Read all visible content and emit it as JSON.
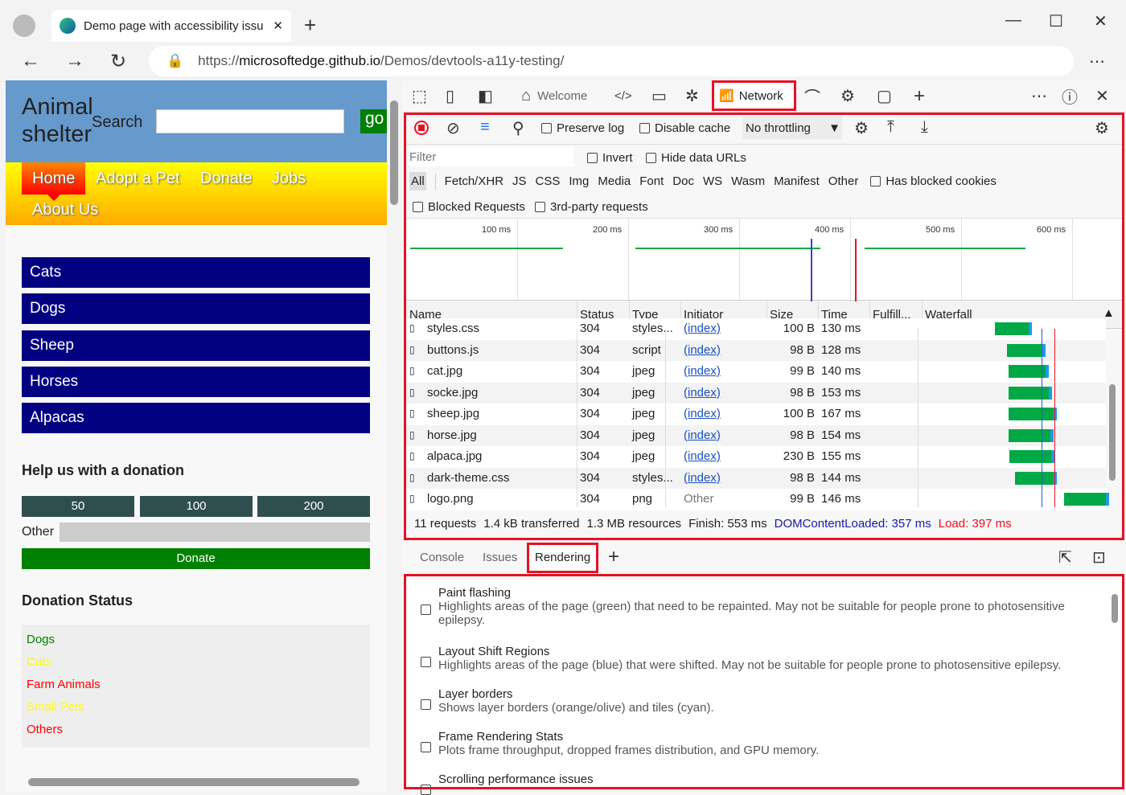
{
  "browser": {
    "tab_title": "Demo page with accessibility issu",
    "url_prefix": "https://",
    "url_host": "microsoftedge.github.io",
    "url_path": "/Demos/devtools-a11y-testing/"
  },
  "page": {
    "logo_line1": "Animal",
    "logo_line2": "shelter",
    "search_label": "Search",
    "search_value": "",
    "go_label": "go",
    "nav": [
      "Home",
      "Adopt a Pet",
      "Donate",
      "Jobs",
      "About Us"
    ],
    "categories": [
      "Cats",
      "Dogs",
      "Sheep",
      "Horses",
      "Alpacas"
    ],
    "donation_heading": "Help us with a donation",
    "amounts": [
      "50",
      "100",
      "200"
    ],
    "other_label": "Other",
    "donate_label": "Donate",
    "status_heading": "Donation Status",
    "status": [
      {
        "label": "Dogs",
        "color": "#008000"
      },
      {
        "label": "Cats",
        "color": "#ffff00"
      },
      {
        "label": "Farm Animals",
        "color": "#ff0000"
      },
      {
        "label": "Small Pets",
        "color": "#ffff00"
      },
      {
        "label": "Others",
        "color": "#ff0000"
      }
    ]
  },
  "devtools": {
    "tabs": {
      "welcome": "Welcome",
      "network": "Network"
    },
    "toolbar": {
      "preserve_log": "Preserve log",
      "disable_cache": "Disable cache",
      "throttling": "No throttling"
    },
    "filter": {
      "placeholder": "Filter",
      "invert": "Invert",
      "hide_data_urls": "Hide data URLs",
      "has_blocked_cookies": "Has blocked cookies",
      "blocked_requests": "Blocked Requests",
      "third_party": "3rd-party requests"
    },
    "types": [
      "All",
      "Fetch/XHR",
      "JS",
      "CSS",
      "Img",
      "Media",
      "Font",
      "Doc",
      "WS",
      "Wasm",
      "Manifest",
      "Other"
    ],
    "overview_ticks": [
      "100 ms",
      "200 ms",
      "300 ms",
      "400 ms",
      "500 ms",
      "600 ms"
    ],
    "columns": [
      "Name",
      "Status",
      "Type",
      "Initiator",
      "Size",
      "Time",
      "Fulfill...",
      "Waterfall"
    ],
    "rows": [
      {
        "name": "styles.css",
        "status": "304",
        "type": "styles...",
        "initiator": "(index)",
        "size": "100 B",
        "time": "130 ms"
      },
      {
        "name": "buttons.js",
        "status": "304",
        "type": "script",
        "initiator": "(index)",
        "size": "98 B",
        "time": "128 ms"
      },
      {
        "name": "cat.jpg",
        "status": "304",
        "type": "jpeg",
        "initiator": "(index)",
        "size": "99 B",
        "time": "140 ms"
      },
      {
        "name": "socke.jpg",
        "status": "304",
        "type": "jpeg",
        "initiator": "(index)",
        "size": "98 B",
        "time": "153 ms"
      },
      {
        "name": "sheep.jpg",
        "status": "304",
        "type": "jpeg",
        "initiator": "(index)",
        "size": "100 B",
        "time": "167 ms"
      },
      {
        "name": "horse.jpg",
        "status": "304",
        "type": "jpeg",
        "initiator": "(index)",
        "size": "98 B",
        "time": "154 ms"
      },
      {
        "name": "alpaca.jpg",
        "status": "304",
        "type": "jpeg",
        "initiator": "(index)",
        "size": "230 B",
        "time": "155 ms"
      },
      {
        "name": "dark-theme.css",
        "status": "304",
        "type": "styles...",
        "initiator": "(index)",
        "size": "98 B",
        "time": "144 ms"
      },
      {
        "name": "logo.png",
        "status": "304",
        "type": "png",
        "initiator": "Other",
        "size": "99 B",
        "time": "146 ms"
      }
    ],
    "summary": {
      "requests": "11 requests",
      "transferred": "1.4 kB transferred",
      "resources": "1.3 MB resources",
      "finish": "Finish: 553 ms",
      "dcl": "DOMContentLoaded: 357 ms",
      "load": "Load: 397 ms",
      "dcl_color": "#1a1aa6",
      "load_color": "#e81123"
    },
    "drawer_tabs": [
      "Console",
      "Issues",
      "Rendering"
    ],
    "rendering": [
      {
        "title": "Paint flashing",
        "desc": "Highlights areas of the page (green) that need to be repainted. May not be suitable for people prone to photosensitive epilepsy."
      },
      {
        "title": "Layout Shift Regions",
        "desc": "Highlights areas of the page (blue) that were shifted. May not be suitable for people prone to photosensitive epilepsy."
      },
      {
        "title": "Layer borders",
        "desc": "Shows layer borders (orange/olive) and tiles (cyan)."
      },
      {
        "title": "Frame Rendering Stats",
        "desc": "Plots frame throughput, dropped frames distribution, and GPU memory."
      },
      {
        "title": "Scrolling performance issues",
        "desc": ""
      }
    ]
  }
}
